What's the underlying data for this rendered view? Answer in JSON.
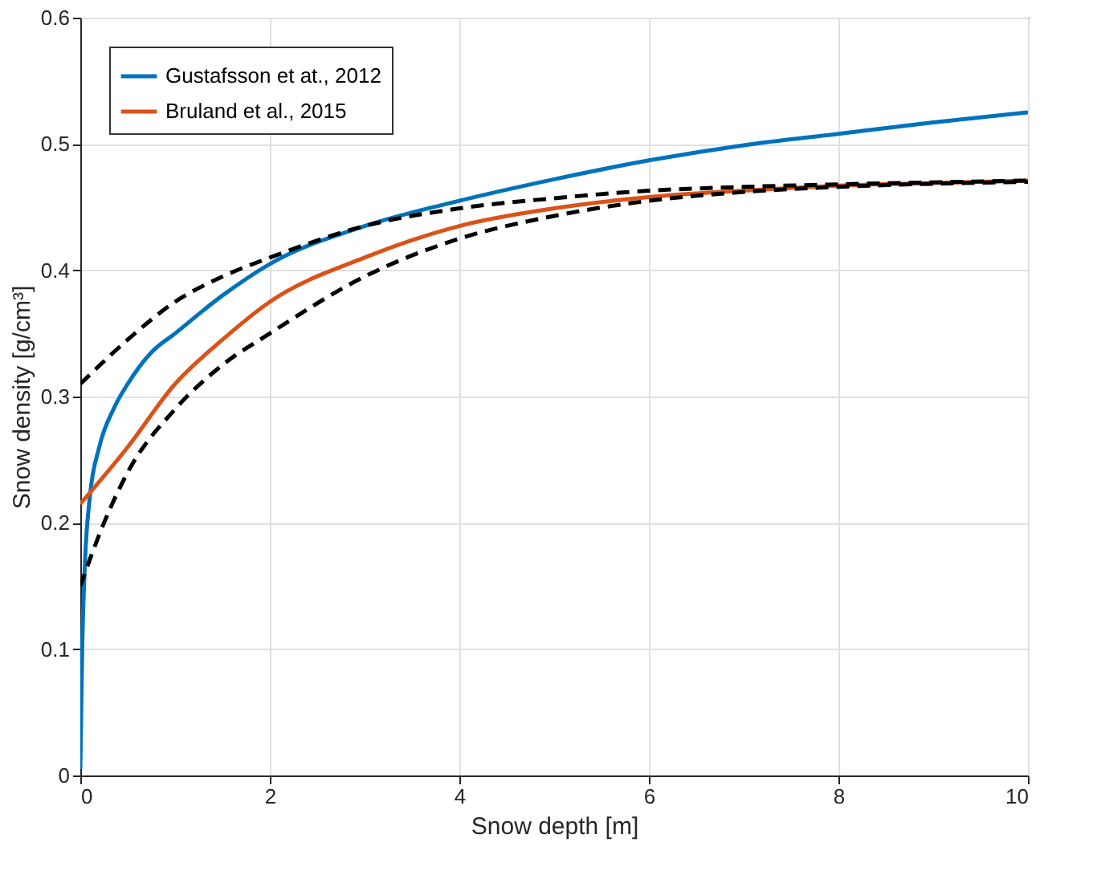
{
  "chart_data": {
    "type": "line",
    "xlabel": "Snow depth [m]",
    "ylabel": "Snow density [g/cm³]",
    "xlim": [
      0,
      10
    ],
    "xticks": [
      0,
      2,
      4,
      6,
      8,
      10
    ],
    "ylim": [
      0,
      0.6
    ],
    "yticks": [
      0,
      0.1,
      0.2,
      0.3,
      0.4,
      0.5,
      0.6
    ],
    "grid": true,
    "legend": "top left",
    "marker": "none",
    "series": [
      {
        "name": "Gustafsson et at., 2012",
        "color": "#0072bd",
        "line_style": "solid",
        "x": [
          0,
          0.02,
          0.05,
          0.1,
          0.2,
          0.35,
          0.5,
          0.75,
          1,
          1.5,
          2,
          3,
          4,
          5,
          6,
          7,
          8,
          9,
          10
        ],
        "values": [
          0.005,
          0.1,
          0.17,
          0.22,
          0.26,
          0.29,
          0.31,
          0.335,
          0.35,
          0.38,
          0.405,
          0.435,
          0.455,
          0.472,
          0.487,
          0.499,
          0.508,
          0.517,
          0.525
        ]
      },
      {
        "name": "Bruland et al., 2015",
        "color": "#d95319",
        "line_style": "solid",
        "x": [
          0,
          0.5,
          1,
          1.5,
          2,
          3,
          4,
          5,
          6,
          7,
          8,
          9,
          10
        ],
        "values": [
          0.215,
          0.26,
          0.31,
          0.345,
          0.375,
          0.41,
          0.435,
          0.449,
          0.458,
          0.463,
          0.467,
          0.469,
          0.471
        ]
      },
      {
        "color": "#000000",
        "line_style": "dashed",
        "x": [
          0,
          0.5,
          1,
          1.5,
          2,
          3,
          4,
          5,
          6,
          7,
          8,
          10
        ],
        "values": [
          0.31,
          0.345,
          0.375,
          0.395,
          0.41,
          0.435,
          0.449,
          0.457,
          0.463,
          0.466,
          0.468,
          0.471
        ]
      },
      {
        "color": "#000000",
        "line_style": "dashed",
        "x": [
          0,
          0.25,
          0.5,
          1,
          1.5,
          2,
          3,
          4,
          5,
          6,
          7,
          8,
          10
        ],
        "values": [
          0.15,
          0.2,
          0.24,
          0.29,
          0.325,
          0.35,
          0.395,
          0.425,
          0.443,
          0.455,
          0.462,
          0.466,
          0.47
        ]
      }
    ]
  }
}
